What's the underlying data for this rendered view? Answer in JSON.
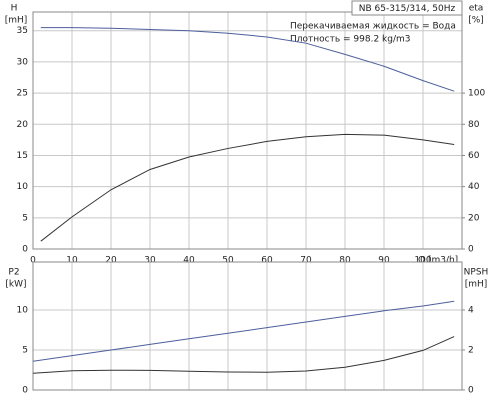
{
  "chart_data": [
    {
      "type": "line",
      "title": "NB 65-315/314, 50Hz",
      "annotations": [
        "Перекачиваемая жидкость = Вода",
        "Плотность = 998.2 kg/m3"
      ],
      "xlabel": "Q [m3/h]",
      "ylabel": "H",
      "yunit": "[mH]",
      "y2label": "eta",
      "y2unit": "[%]",
      "x": [
        2,
        10,
        20,
        30,
        40,
        50,
        60,
        70,
        80,
        90,
        100,
        108
      ],
      "series": [
        {
          "name": "H",
          "color": "#4c5f9c",
          "values": [
            35.5,
            35.5,
            35.4,
            35.2,
            35,
            34.6,
            34,
            33,
            31.2,
            29.3,
            27,
            25.3
          ]
        },
        {
          "name": "eta",
          "color": "#333333",
          "axis": "y2",
          "values": [
            5,
            20.6,
            38,
            51,
            59,
            64.5,
            69,
            72,
            73.5,
            73,
            70,
            67
          ]
        }
      ],
      "xlim": [
        0,
        110
      ],
      "xticks": [
        0,
        10,
        20,
        30,
        40,
        50,
        60,
        70,
        80,
        90,
        100
      ],
      "ylim": [
        0,
        38
      ],
      "yticks": [
        0,
        5,
        10,
        15,
        20,
        25,
        30,
        35
      ],
      "y2lim": [
        0,
        152
      ],
      "y2ticks": [
        0,
        20,
        40,
        60,
        80,
        100
      ],
      "grid": true,
      "show_xtick_labels": true
    },
    {
      "type": "line",
      "ylabel": "P2",
      "yunit": "[kW]",
      "y2label": "NPSH",
      "y2unit": "[mH]",
      "x": [
        0,
        10,
        20,
        30,
        40,
        50,
        60,
        70,
        80,
        90,
        100,
        108
      ],
      "series": [
        {
          "name": "P2",
          "color": "#4c5f9c",
          "values": [
            3.6,
            4.3,
            5,
            5.7,
            6.4,
            7.1,
            7.8,
            8.5,
            9.2,
            9.9,
            10.5,
            11.1
          ]
        },
        {
          "name": "NPSH",
          "color": "#333333",
          "axis": "y2",
          "values": [
            0.84,
            0.96,
            0.99,
            0.98,
            0.94,
            0.9,
            0.89,
            0.95,
            1.14,
            1.48,
            1.98,
            2.67
          ]
        }
      ],
      "xlim": [
        0,
        110
      ],
      "xticks": [
        0,
        10,
        20,
        30,
        40,
        50,
        60,
        70,
        80,
        90,
        100
      ],
      "ylim": [
        0,
        16
      ],
      "yticks": [
        0,
        5,
        10
      ],
      "y2lim": [
        0,
        6.4
      ],
      "y2ticks": [
        0,
        2,
        4
      ],
      "grid": true,
      "show_xtick_labels": false
    }
  ]
}
